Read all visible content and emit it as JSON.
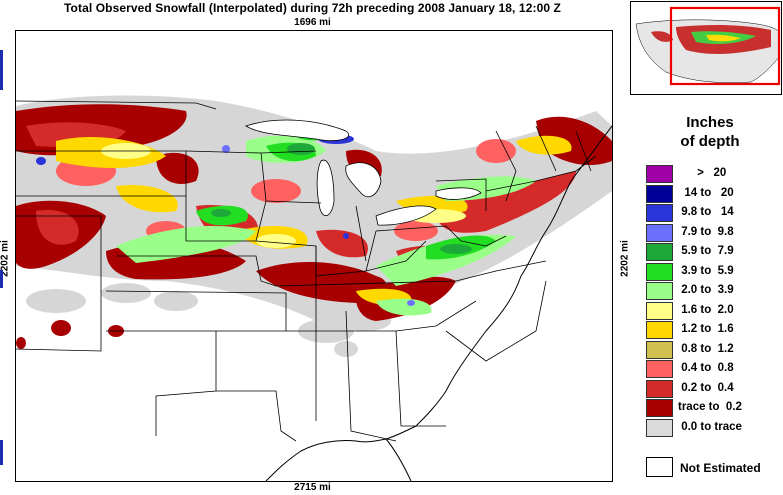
{
  "title": "Total Observed Snowfall (Interpolated) during 72h preceding 2008 January 18, 12:00 Z",
  "dimensions": {
    "top": "1696 mi",
    "bottom": "2715 mi",
    "left": "2202 mi",
    "right": "2202 mi"
  },
  "legend": {
    "title_line1": "Inches",
    "title_line2": "of depth",
    "items": [
      {
        "label": "      >   20",
        "color": "#a000a8"
      },
      {
        "label": "  14 to   20",
        "color": "#000098"
      },
      {
        "label": " 9.8 to   14",
        "color": "#2a34d8"
      },
      {
        "label": " 7.9 to  9.8",
        "color": "#6b70ff"
      },
      {
        "label": " 5.9 to  7.9",
        "color": "#1fa83a"
      },
      {
        "label": " 3.9 to  5.9",
        "color": "#22dd22"
      },
      {
        "label": " 2.0 to  3.9",
        "color": "#99ff88"
      },
      {
        "label": " 1.6 to  2.0",
        "color": "#ffff88"
      },
      {
        "label": " 1.2 to  1.6",
        "color": "#ffd800"
      },
      {
        "label": " 0.8 to  1.2",
        "color": "#cfc050"
      },
      {
        "label": " 0.4 to  0.8",
        "color": "#ff6060"
      },
      {
        "label": " 0.2 to  0.4",
        "color": "#d42a2a"
      },
      {
        "label": "trace to  0.2",
        "color": "#a80000"
      },
      {
        "label": " 0.0 to trace",
        "color": "#dadada"
      }
    ],
    "not_estimated_label": "Not Estimated"
  },
  "colors": {
    "inset_highlight": "#ee0000",
    "edge_mark": "#1a2fb0"
  }
}
